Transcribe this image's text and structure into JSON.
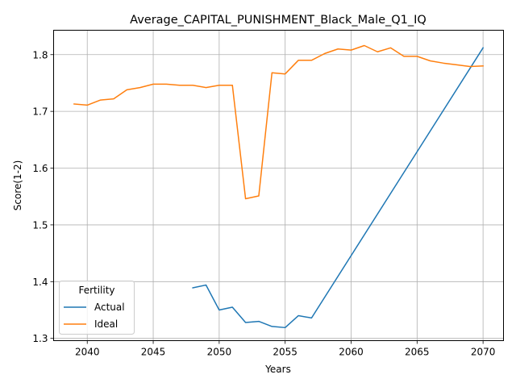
{
  "colors": {
    "actual": "#1f77b4",
    "ideal": "#ff7f0e",
    "grid": "#b0b0b0",
    "axis": "#000000",
    "background": "#ffffff"
  },
  "chart_data": {
    "type": "line",
    "title": "Average_CAPITAL_PUNISHMENT_Black_Male_Q1_IQ",
    "xlabel": "Years",
    "ylabel": "Score(1-2)",
    "xlim": [
      2037.45,
      2071.55
    ],
    "ylim": [
      1.296,
      1.843
    ],
    "x_ticks": [
      2040,
      2045,
      2050,
      2055,
      2060,
      2065,
      2070
    ],
    "y_ticks": [
      1.3,
      1.4,
      1.5,
      1.6,
      1.7,
      1.8
    ],
    "grid": true,
    "legend": {
      "title": "Fertility",
      "position": "lower-left",
      "entries": [
        "Actual",
        "Ideal"
      ]
    },
    "series": [
      {
        "name": "Actual",
        "color": "#1f77b4",
        "x": [
          2048,
          2049,
          2050,
          2051,
          2052,
          2053,
          2054,
          2055,
          2056,
          2057,
          2070
        ],
        "y": [
          1.389,
          1.394,
          1.35,
          1.355,
          1.328,
          1.33,
          1.321,
          1.319,
          1.34,
          1.336,
          1.812
        ]
      },
      {
        "name": "Ideal",
        "color": "#ff7f0e",
        "x": [
          2039,
          2040,
          2041,
          2042,
          2043,
          2044,
          2045,
          2046,
          2047,
          2048,
          2049,
          2050,
          2051,
          2052,
          2053,
          2054,
          2055,
          2056,
          2057,
          2058,
          2059,
          2060,
          2061,
          2062,
          2063,
          2064,
          2065,
          2066,
          2067,
          2068,
          2069,
          2070
        ],
        "y": [
          1.713,
          1.711,
          1.72,
          1.722,
          1.738,
          1.742,
          1.748,
          1.748,
          1.746,
          1.746,
          1.742,
          1.746,
          1.746,
          1.546,
          1.551,
          1.768,
          1.766,
          1.79,
          1.79,
          1.802,
          1.81,
          1.808,
          1.816,
          1.805,
          1.812,
          1.797,
          1.797,
          1.789,
          1.785,
          1.782,
          1.779,
          1.78
        ]
      }
    ]
  }
}
